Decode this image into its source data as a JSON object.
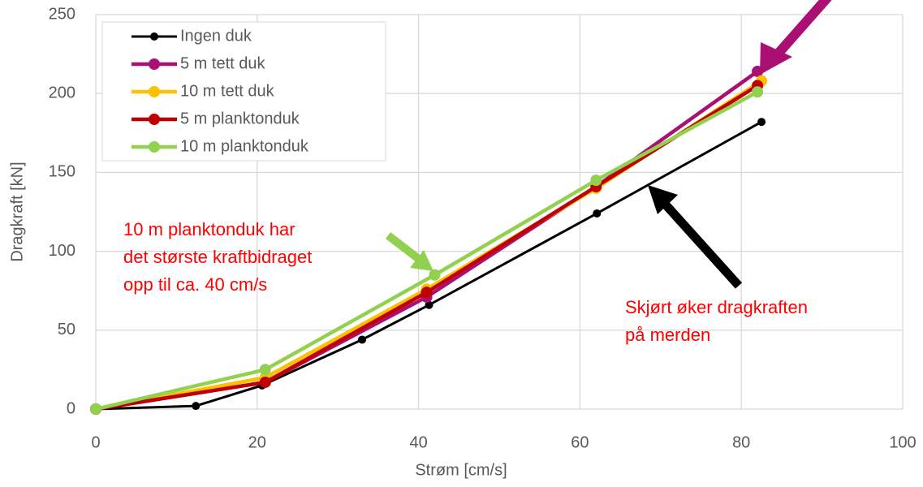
{
  "chart_data": {
    "type": "line",
    "xlabel": "Strøm [cm/s]",
    "ylabel": "Dragkraft [kN]",
    "xlim": [
      0,
      100
    ],
    "xticks": [
      0,
      20,
      40,
      60,
      80,
      100
    ],
    "ylim": [
      0,
      250
    ],
    "yticks": [
      0,
      50,
      100,
      150,
      200,
      250
    ],
    "grid": true,
    "legend": "upper left",
    "series": [
      {
        "name": "Ingen duk",
        "color": "#000000",
        "x": [
          0,
          12.4,
          20.6,
          33,
          41.3,
          62.1,
          82.5
        ],
        "values": [
          0,
          2,
          15,
          44,
          66,
          124,
          182
        ]
      },
      {
        "name": "5 m tett duk",
        "color": "#aa1073",
        "x": [
          0,
          21,
          41,
          62,
          82
        ],
        "values": [
          0,
          17,
          71,
          141,
          214
        ]
      },
      {
        "name": "10 m tett duk",
        "color": "#ffc000",
        "x": [
          0,
          21,
          41,
          62,
          82.5
        ],
        "values": [
          0,
          20,
          76,
          140,
          208
        ]
      },
      {
        "name": "5 m planktonduk",
        "color": "#c00000",
        "x": [
          0,
          21,
          41,
          62,
          82
        ],
        "values": [
          0,
          17,
          74,
          141,
          205
        ]
      },
      {
        "name": "10 m planktonduk",
        "color": "#92d050",
        "x": [
          0,
          21,
          42,
          62,
          82
        ],
        "values": [
          0,
          25,
          85,
          145,
          201
        ]
      }
    ],
    "annotations": [
      [
        "10 m planktonduk har",
        "det største kraftbidraget",
        "opp til ca. 40 cm/s"
      ],
      [
        "Skjørt øker dragkraften",
        "på merden"
      ]
    ]
  }
}
